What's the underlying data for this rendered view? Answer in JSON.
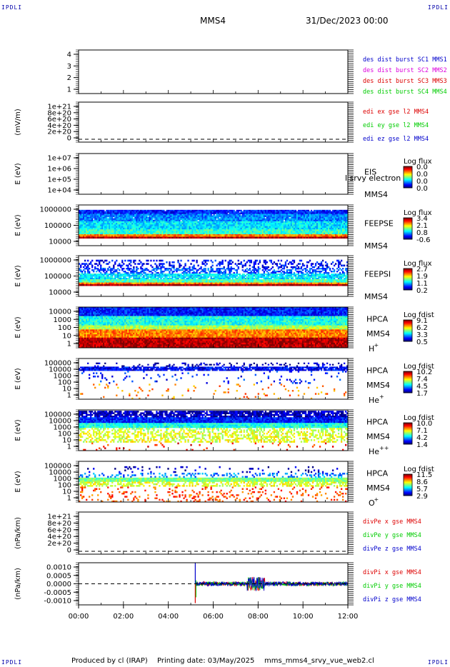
{
  "header": {
    "corner_label": "IPDLI",
    "spacecraft": "MMS4",
    "datetime": "31/Dec/2023 00:00"
  },
  "footer": {
    "produced_by": "Produced by cl (IRAP)",
    "printing_date": "Printing date: 03/May/2025",
    "script_name": "mms_mms4_srvy_vue_web2.cl"
  },
  "colors": {
    "red": "#dd0000",
    "green": "#00cc00",
    "blue": "#0000cc",
    "magenta": "#dd00dd"
  },
  "chart_data": [
    {
      "type": "line",
      "id": "burst",
      "ylabel": "",
      "yticks": [
        "4",
        "3",
        "2",
        "1"
      ],
      "legend": [
        {
          "text": "des dist burst SC1 MMS1",
          "color": "#0000cc"
        },
        {
          "text": "des dist burst SC2 MMS2",
          "color": "#dd00dd"
        },
        {
          "text": "des dist burst SC3 MMS3",
          "color": "#dd0000"
        },
        {
          "text": "des dist burst SC4 MMS4",
          "color": "#00cc00"
        }
      ],
      "series": []
    },
    {
      "type": "line",
      "id": "edi",
      "ylabel": "(mV/m)",
      "yticks": [
        "1e+21",
        "8e+20",
        "6e+20",
        "4e+20",
        "2e+20",
        "0"
      ],
      "legend": [
        {
          "text": "edi ex gse l2 MMS4",
          "color": "#dd0000"
        },
        {
          "text": "edi ey gse l2 MMS4",
          "color": "#00cc00"
        },
        {
          "text": "edi ez gse l2 MMS4",
          "color": "#0000cc"
        }
      ],
      "zero_line": true,
      "series": []
    },
    {
      "type": "heatmap",
      "id": "eis",
      "ylabel": "E (eV)",
      "yticks": [
        "1e+07",
        "1e+06",
        "1e+05",
        "1e+04"
      ],
      "instrument": [
        "EIS"
      ],
      "instrument_sc": "MMS4",
      "overlay_text": "l srvy electron to",
      "colorbar_title": "Log flux",
      "colorbar_ticks": [
        "0.0",
        "0.0",
        "0.0",
        "0.0"
      ],
      "bands": []
    },
    {
      "type": "heatmap",
      "id": "feepse",
      "ylabel": "E (eV)",
      "yticks": [
        "1000000",
        "100000",
        "10000"
      ],
      "instrument": [
        "FEEPSE"
      ],
      "instrument_sc": "MMS4",
      "colorbar_title": "Log flux",
      "colorbar_ticks": [
        "3.4",
        "2.1",
        "0.8",
        "-0.6"
      ],
      "bands": [
        {
          "from": 0.12,
          "to": 0.22,
          "level": 0.15,
          "density": 0.97
        },
        {
          "from": 0.22,
          "to": 0.4,
          "level": 0.25,
          "density": 0.98
        },
        {
          "from": 0.4,
          "to": 0.6,
          "level": 0.35,
          "density": 1.0
        },
        {
          "from": 0.6,
          "to": 0.72,
          "level": 0.42,
          "density": 1.0
        },
        {
          "from": 0.72,
          "to": 0.78,
          "level": 0.75,
          "density": 1.0
        },
        {
          "from": 0.78,
          "to": 0.82,
          "level": 0.98,
          "density": 1.0
        }
      ]
    },
    {
      "type": "heatmap",
      "id": "feepsi",
      "ylabel": "E (eV)",
      "yticks": [
        "1000000",
        "100000",
        "10000"
      ],
      "instrument": [
        "FEEPSI"
      ],
      "instrument_sc": "MMS4",
      "colorbar_title": "Log flux",
      "colorbar_ticks": [
        "2.7",
        "1.9",
        "1.1",
        "0.2"
      ],
      "bands": [
        {
          "from": 0.1,
          "to": 0.3,
          "level": 0.12,
          "density": 0.35
        },
        {
          "from": 0.3,
          "to": 0.44,
          "level": 0.2,
          "density": 0.55
        },
        {
          "from": 0.44,
          "to": 0.58,
          "level": 0.35,
          "density": 0.9
        },
        {
          "from": 0.58,
          "to": 0.66,
          "level": 0.45,
          "density": 1.0
        },
        {
          "from": 0.66,
          "to": 0.7,
          "level": 0.75,
          "density": 1.0
        },
        {
          "from": 0.7,
          "to": 0.74,
          "level": 0.98,
          "density": 1.0
        }
      ]
    },
    {
      "type": "heatmap",
      "id": "hpca-h",
      "ylabel": "E (eV)",
      "yticks": [
        "10000",
        "1000",
        "100",
        "10",
        "1"
      ],
      "instrument": [
        "HPCA",
        "MMS4"
      ],
      "species": "H",
      "species_sup": "+",
      "colorbar_title": "Log fdist",
      "colorbar_ticks": [
        "9.1",
        "6.2",
        "3.3",
        "0.5"
      ],
      "bands": [
        {
          "from": 0.0,
          "to": 0.22,
          "level": 0.15,
          "density": 1.0
        },
        {
          "from": 0.22,
          "to": 0.45,
          "level": 0.4,
          "density": 1.0
        },
        {
          "from": 0.45,
          "to": 0.55,
          "level": 0.55,
          "density": 1.0
        },
        {
          "from": 0.55,
          "to": 0.75,
          "level": 0.75,
          "density": 1.0
        },
        {
          "from": 0.75,
          "to": 1.0,
          "level": 0.95,
          "density": 1.0
        }
      ]
    },
    {
      "type": "heatmap",
      "id": "hpca-he",
      "ylabel": "E (eV)",
      "yticks": [
        "100000",
        "10000",
        "1000",
        "100",
        "10",
        "1"
      ],
      "instrument": [
        "HPCA",
        "MMS4"
      ],
      "species": "He",
      "species_sup": "+",
      "colorbar_title": "Log fdist",
      "colorbar_ticks": [
        "10.2",
        "7.4",
        "4.5",
        "1.7"
      ],
      "bands": [
        {
          "from": 0.1,
          "to": 0.2,
          "level": 0.05,
          "density": 0.2
        },
        {
          "from": 0.2,
          "to": 0.3,
          "level": 0.12,
          "density": 0.9
        },
        {
          "from": 0.3,
          "to": 0.62,
          "level": 0.15,
          "density": 0.06
        },
        {
          "from": 0.62,
          "to": 1.0,
          "level": 0.75,
          "density": 0.05
        }
      ]
    },
    {
      "type": "heatmap",
      "id": "hpca-hepp",
      "ylabel": "E (eV)",
      "yticks": [
        "100000",
        "10000",
        "1000",
        "100",
        "10",
        "1"
      ],
      "instrument": [
        "HPCA",
        "MMS4"
      ],
      "species": "He",
      "species_sup": "++",
      "colorbar_title": "Log fdist",
      "colorbar_ticks": [
        "10.0",
        "7.1",
        "4.2",
        "1.4"
      ],
      "bands": [
        {
          "from": 0.02,
          "to": 0.18,
          "level": 0.06,
          "density": 0.8
        },
        {
          "from": 0.18,
          "to": 0.32,
          "level": 0.15,
          "density": 1.0
        },
        {
          "from": 0.32,
          "to": 0.44,
          "level": 0.4,
          "density": 1.0
        },
        {
          "from": 0.44,
          "to": 0.52,
          "level": 0.55,
          "density": 0.4
        },
        {
          "from": 0.52,
          "to": 0.8,
          "level": 0.6,
          "density": 0.5
        },
        {
          "from": 0.8,
          "to": 1.0,
          "level": 0.85,
          "density": 0.04
        }
      ]
    },
    {
      "type": "heatmap",
      "id": "hpca-o",
      "ylabel": "E (eV)",
      "yticks": [
        "100000",
        "10000",
        "1000",
        "100",
        "10",
        "1"
      ],
      "instrument": [
        "HPCA",
        "MMS4"
      ],
      "species": "O",
      "species_sup": "+",
      "colorbar_title": "Log fdist",
      "colorbar_ticks": [
        "11.5",
        "8.6",
        "5.7",
        "2.9"
      ],
      "bands": [
        {
          "from": 0.12,
          "to": 0.28,
          "level": 0.05,
          "density": 0.08
        },
        {
          "from": 0.28,
          "to": 0.4,
          "level": 0.25,
          "density": 0.3
        },
        {
          "from": 0.4,
          "to": 0.5,
          "level": 0.5,
          "density": 1.0
        },
        {
          "from": 0.5,
          "to": 0.62,
          "level": 0.6,
          "density": 0.5
        },
        {
          "from": 0.62,
          "to": 1.0,
          "level": 0.8,
          "density": 0.15
        }
      ]
    },
    {
      "type": "line",
      "id": "divpe",
      "ylabel": "(nPa/km)",
      "yticks": [
        "1e+21",
        "8e+20",
        "6e+20",
        "4e+20",
        "2e+20",
        "0"
      ],
      "legend": [
        {
          "text": "divPe x gse MMS4",
          "color": "#dd0000"
        },
        {
          "text": "divPe y gse MMS4",
          "color": "#00cc00"
        },
        {
          "text": "divPe z gse MMS4",
          "color": "#0000cc"
        }
      ],
      "zero_line": true,
      "series": []
    },
    {
      "type": "line",
      "id": "divpi",
      "ylabel": "(nPa/km)",
      "yticks": [
        "0.0010",
        "0.0005",
        "0.0000",
        "-0.0005",
        "-0.0010"
      ],
      "ylim": [
        -0.0012,
        0.0012
      ],
      "legend": [
        {
          "text": "divPi x gse MMS4",
          "color": "#dd0000"
        },
        {
          "text": "divPi y gse MMS4",
          "color": "#00cc00"
        },
        {
          "text": "divPi z gse MMS4",
          "color": "#0000cc"
        }
      ],
      "zero_line": true,
      "data_start_hours": 5.2,
      "spike_hours": 5.2,
      "spike_values": [
        -0.0011,
        0.0012
      ],
      "noise_amplitude": 0.00012,
      "active_window_hours": [
        7.5,
        8.3
      ],
      "active_amplitude": 0.0004
    }
  ],
  "xaxis": {
    "ticks": [
      "00:00",
      "02:00",
      "04:00",
      "06:00",
      "08:00",
      "10:00",
      "12:00"
    ],
    "range_hours": [
      0,
      12
    ]
  }
}
